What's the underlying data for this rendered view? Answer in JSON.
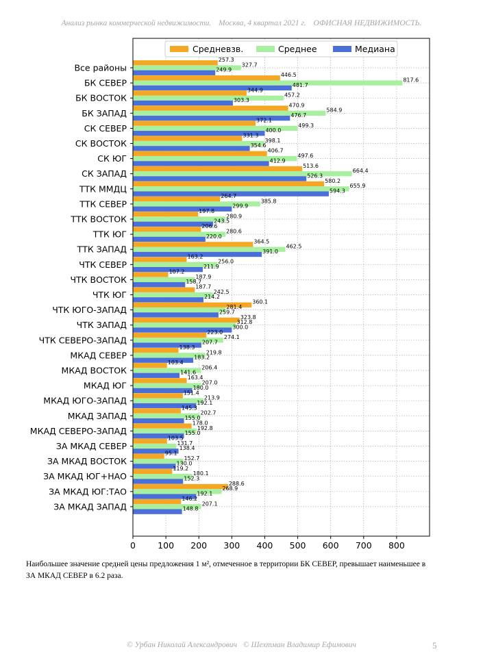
{
  "header": {
    "part1": "Анализ рынка коммерческой недвижимости.",
    "part2": "Москва,  4 квартал 2021 г.",
    "part3": "ОФИСНАЯ НЕДВИЖИМОСТЬ."
  },
  "note": {
    "text": "Наибольшее значение средней цены предложения 1 м², отмеченное в территории БК СЕВЕР, превышает наименьшее в ЗА МКАД СЕВЕР в 6.2 раза."
  },
  "footer": {
    "author1": "© Урбан Николай Александрович",
    "author2": "© Шехтман Владимир Ефимович",
    "page": "5"
  },
  "chart_data": {
    "type": "bar",
    "orientation": "horizontal",
    "title": "",
    "xlabel": "",
    "ylabel": "",
    "xlim": [
      0,
      900
    ],
    "xticks": [
      0,
      100,
      200,
      300,
      400,
      500,
      600,
      700,
      800
    ],
    "grid": true,
    "legend_position": "top-center",
    "categories": [
      "Все районы",
      "БК СЕВЕР",
      "БК ВОСТОК",
      "БК ЗАПАД",
      "СК СЕВЕР",
      "СК ВОСТОК",
      "СК ЮГ",
      "СК ЗАПАД",
      "ТТК ММДЦ",
      "ТТК СЕВЕР",
      "ТТК ВОСТОК",
      "ТТК ЮГ",
      "ТТК ЗАПАД",
      "ЧТК СЕВЕР",
      "ЧТК ВОСТОК",
      "ЧТК ЮГ",
      "ЧТК ЮГО-ЗАПАД",
      "ЧТК ЗАПАД",
      "ЧТК СЕВЕРО-ЗАПАД",
      "МКАД СЕВЕР",
      "МКАД ВОСТОК",
      "МКАД ЮГ",
      "МКАД ЮГО-ЗАПАД",
      "МКАД ЗАПАД",
      "МКАД СЕВЕРО-ЗАПАД",
      "ЗА МКАД СЕВЕР",
      "ЗА МКАД ВОСТОК",
      "ЗА МКАД ЮГ+НАО",
      "ЗА МКАД ЮГ:ТАО",
      "ЗА МКАД ЗАПАД"
    ],
    "series": [
      {
        "name": "Средневзв.",
        "color": "#f5a623",
        "values": [
          257.3,
          446.5,
          344.9,
          470.9,
          372.1,
          331.3,
          406.7,
          513.6,
          580.2,
          264.7,
          197.8,
          206.6,
          364.5,
          163.2,
          107.2,
          187.7,
          360.1,
          323.8,
          223.0,
          138.3,
          103.4,
          163.4,
          151.4,
          145.3,
          178.0,
          103.5,
          95.1,
          119.2,
          288.6,
          146.2
        ]
      },
      {
        "name": "Среднее",
        "color": "#a8f0a0",
        "values": [
          327.7,
          817.6,
          457.2,
          584.9,
          499.3,
          398.1,
          497.6,
          664.4,
          655.9,
          385.8,
          280.9,
          280.6,
          462.5,
          256.0,
          187.9,
          242.5,
          281.4,
          312.8,
          274.1,
          219.8,
          206.4,
          207.0,
          213.9,
          202.7,
          192.8,
          131.7,
          152.7,
          180.1,
          268.9,
          207.1
        ]
      },
      {
        "name": "Медиана",
        "color": "#4a6fd8",
        "values": [
          249.9,
          481.7,
          303.3,
          476.7,
          400.0,
          354.6,
          412.9,
          526.3,
          594.3,
          299.9,
          243.5,
          220.0,
          391.0,
          211.9,
          158.7,
          214.2,
          259.7,
          300.0,
          207.7,
          183.2,
          141.6,
          180.0,
          192.1,
          155.0,
          155.0,
          138.4,
          130.0,
          152.3,
          192.1,
          148.8
        ]
      }
    ]
  }
}
